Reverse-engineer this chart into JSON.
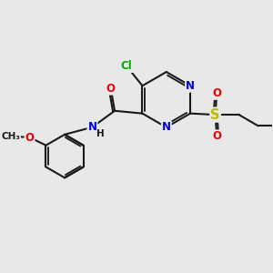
{
  "bg_color": "#e8e8e8",
  "bond_color": "#1a1a1a",
  "bond_width": 1.5,
  "atom_colors": {
    "N": "#0000ee",
    "O": "#ee0000",
    "S": "#bbbb00",
    "Cl": "#00aa00",
    "C": "#1a1a1a",
    "H": "#1a1a1a"
  },
  "font_size": 8.5,
  "fig_size": [
    3.0,
    3.0
  ],
  "dpi": 100
}
